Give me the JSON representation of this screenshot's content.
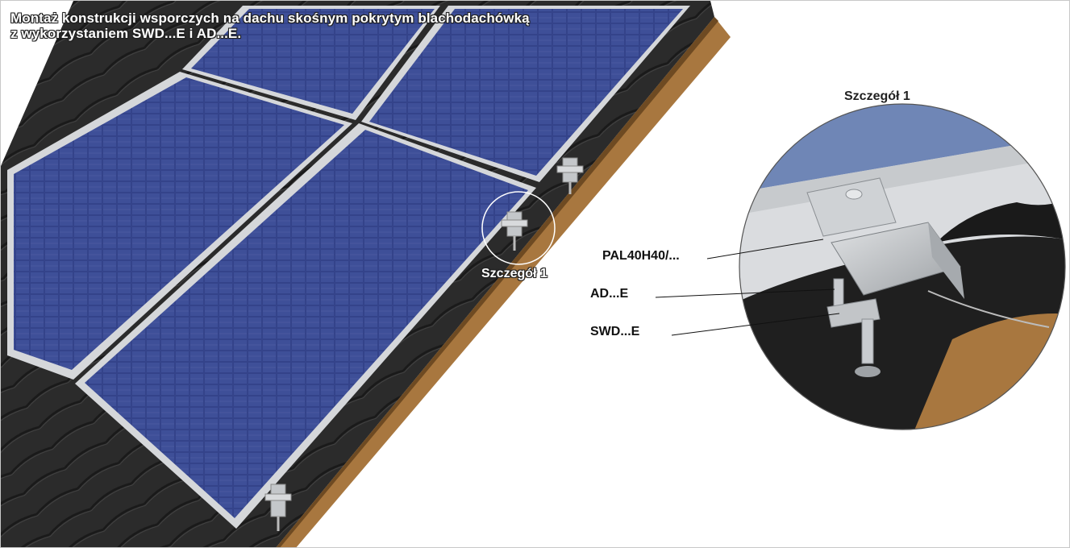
{
  "title_lines": [
    "Montaż konstrukcji wsporczych na dachu skośnym pokrytym blachodachówką",
    "z wykorzystaniem SWD...E i AD...E."
  ],
  "detail_callout": "Szczegół 1",
  "detail_view": {
    "title": "Szczegół 1",
    "labels": [
      "PAL40H40/...",
      "AD...E",
      "SWD...E"
    ]
  },
  "colors": {
    "roof_sheet": "#2a2a2a",
    "roof_edge_wood": "#a8773f",
    "panel_cell": "#3b4a8c",
    "panel_frame": "#c9ccd0",
    "rail_aluminium": "#b7bbbf"
  },
  "icons": [
    "solar-panel-icon",
    "mounting-clamp-icon",
    "hanger-bolt-icon"
  ]
}
